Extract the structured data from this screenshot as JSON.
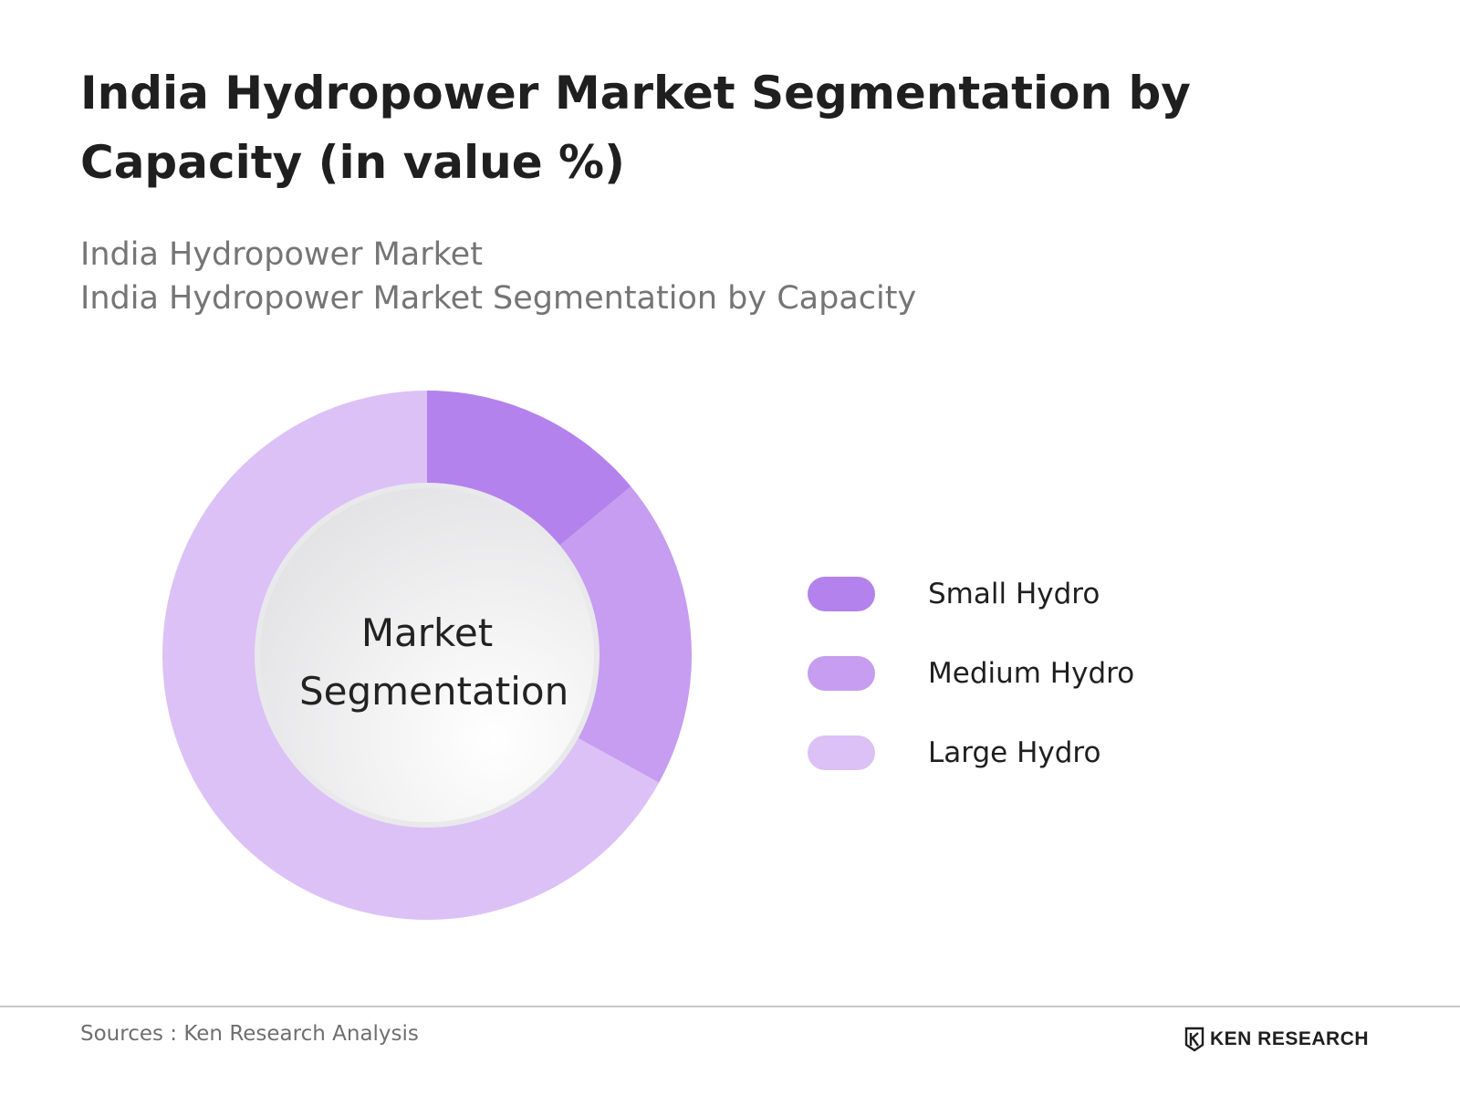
{
  "title": "India Hydropower Market Segmentation by Capacity (in value %)",
  "subtitle_lines": [
    "India Hydropower Market",
    "India Hydropower Market Segmentation by Capacity"
  ],
  "center_label_lines": [
    "Market",
    "Segmentation"
  ],
  "chart_data": {
    "type": "pie",
    "variant": "donut",
    "title": "India Hydropower Market Segmentation by Capacity (in value %)",
    "categories": [
      "Small Hydro",
      "Medium Hydro",
      "Large Hydro"
    ],
    "values": [
      14,
      19,
      67
    ],
    "unit": "%",
    "colors": [
      "#b382ec",
      "#c69df0",
      "#dcc1f6"
    ],
    "start_angle_deg": 0,
    "direction": "clockwise",
    "legend": {
      "placement": "right",
      "entries": [
        "Small Hydro",
        "Medium Hydro",
        "Large Hydro"
      ]
    }
  },
  "footer": {
    "sources": "Sources : Ken Research Analysis",
    "brand": "KEN RESEARCH"
  }
}
